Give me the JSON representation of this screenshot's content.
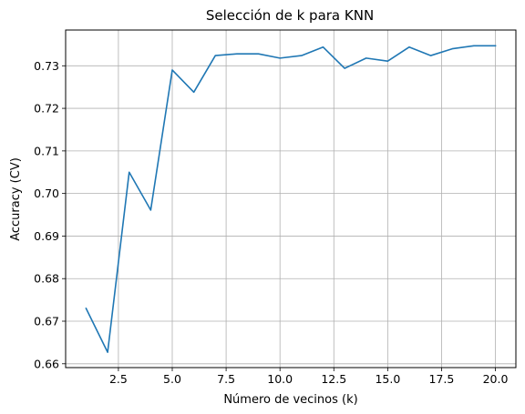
{
  "chart_data": {
    "type": "line",
    "title": "Selección de k para KNN",
    "xlabel": "Número de vecinos (k)",
    "ylabel": "Accuracy (CV)",
    "x": [
      1,
      2,
      3,
      4,
      5,
      6,
      7,
      8,
      9,
      10,
      11,
      12,
      13,
      14,
      15,
      16,
      17,
      18,
      19,
      20
    ],
    "series": [
      {
        "values": [
          0.673,
          0.6627,
          0.705,
          0.6961,
          0.729,
          0.7238,
          0.7324,
          0.7328,
          0.7328,
          0.7318,
          0.7324,
          0.7344,
          0.7294,
          0.7318,
          0.7311,
          0.7344,
          0.7324,
          0.734,
          0.7347,
          0.7347
        ],
        "color": "#1f77b4"
      }
    ],
    "xlim": [
      0.05,
      20.95
    ],
    "ylim": [
      0.6591,
      0.7384
    ],
    "xticks": [
      2.5,
      5.0,
      7.5,
      10.0,
      12.5,
      15.0,
      17.5,
      20.0
    ],
    "xtick_labels": [
      "2.5",
      "5.0",
      "7.5",
      "10.0",
      "12.5",
      "15.0",
      "17.5",
      "20.0"
    ],
    "yticks": [
      0.66,
      0.67,
      0.68,
      0.69,
      0.7,
      0.71,
      0.72,
      0.73
    ],
    "ytick_labels": [
      "0.66",
      "0.67",
      "0.68",
      "0.69",
      "0.70",
      "0.71",
      "0.72",
      "0.73"
    ],
    "grid": true,
    "grid_color": "#b0b0b0"
  }
}
